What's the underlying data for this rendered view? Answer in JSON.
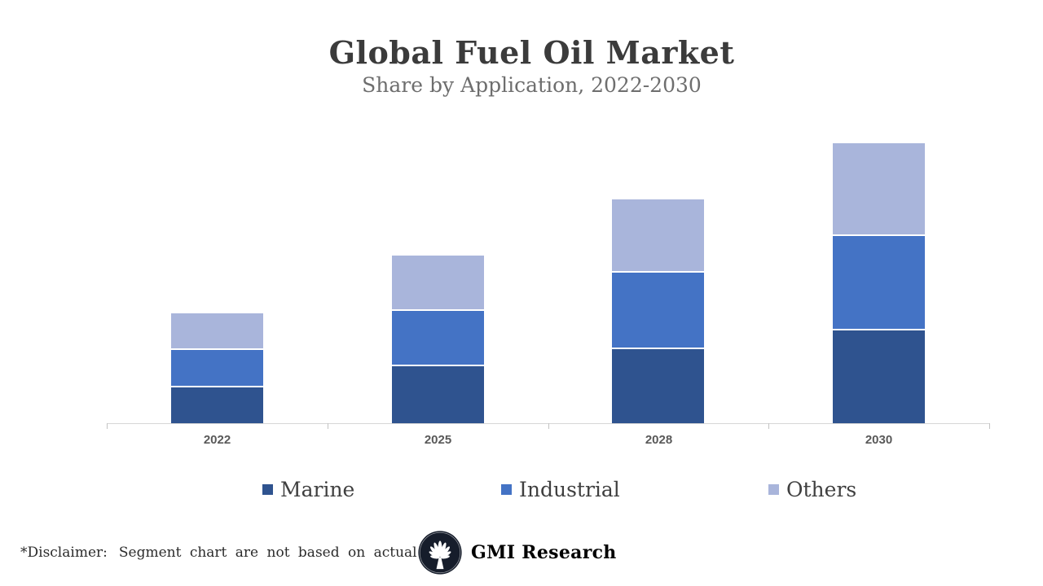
{
  "title": "Global Fuel Oil Market",
  "subtitle": "Share by Application, 2022-2030",
  "chart_data": {
    "type": "bar",
    "stacked": true,
    "title": "Global Fuel Oil Market",
    "subtitle": "Share by Application, 2022-2030",
    "categories": [
      "2022",
      "2025",
      "2028",
      "2030"
    ],
    "series": [
      {
        "name": "Marine",
        "color": "#2F538F",
        "values": [
          44,
          70,
          91,
          114
        ]
      },
      {
        "name": "Industrial",
        "color": "#4473C5",
        "values": [
          46,
          68,
          94,
          116
        ]
      },
      {
        "name": "Others",
        "color": "#A9B5DB",
        "values": [
          45,
          68,
          90,
          114
        ]
      }
    ],
    "xlabel": "",
    "ylabel": "",
    "ylim": [
      0,
      370
    ],
    "grid": false,
    "y_axis_labels_visible": false,
    "legend_position": "bottom"
  },
  "footer": {
    "disclaimer_label": "*Disclaimer:",
    "disclaimer_text": "Segment chart are not based on actual data",
    "brand": "GMI Research"
  },
  "colors": {
    "title_text": "#3b3b3b",
    "subtitle_text": "#6e6e6e",
    "axis_line": "#d6d6d6",
    "axis_label_text": "#595959",
    "legend_text": "#3f3f3f",
    "logo_background": "#161d2b",
    "background": "#ffffff"
  }
}
